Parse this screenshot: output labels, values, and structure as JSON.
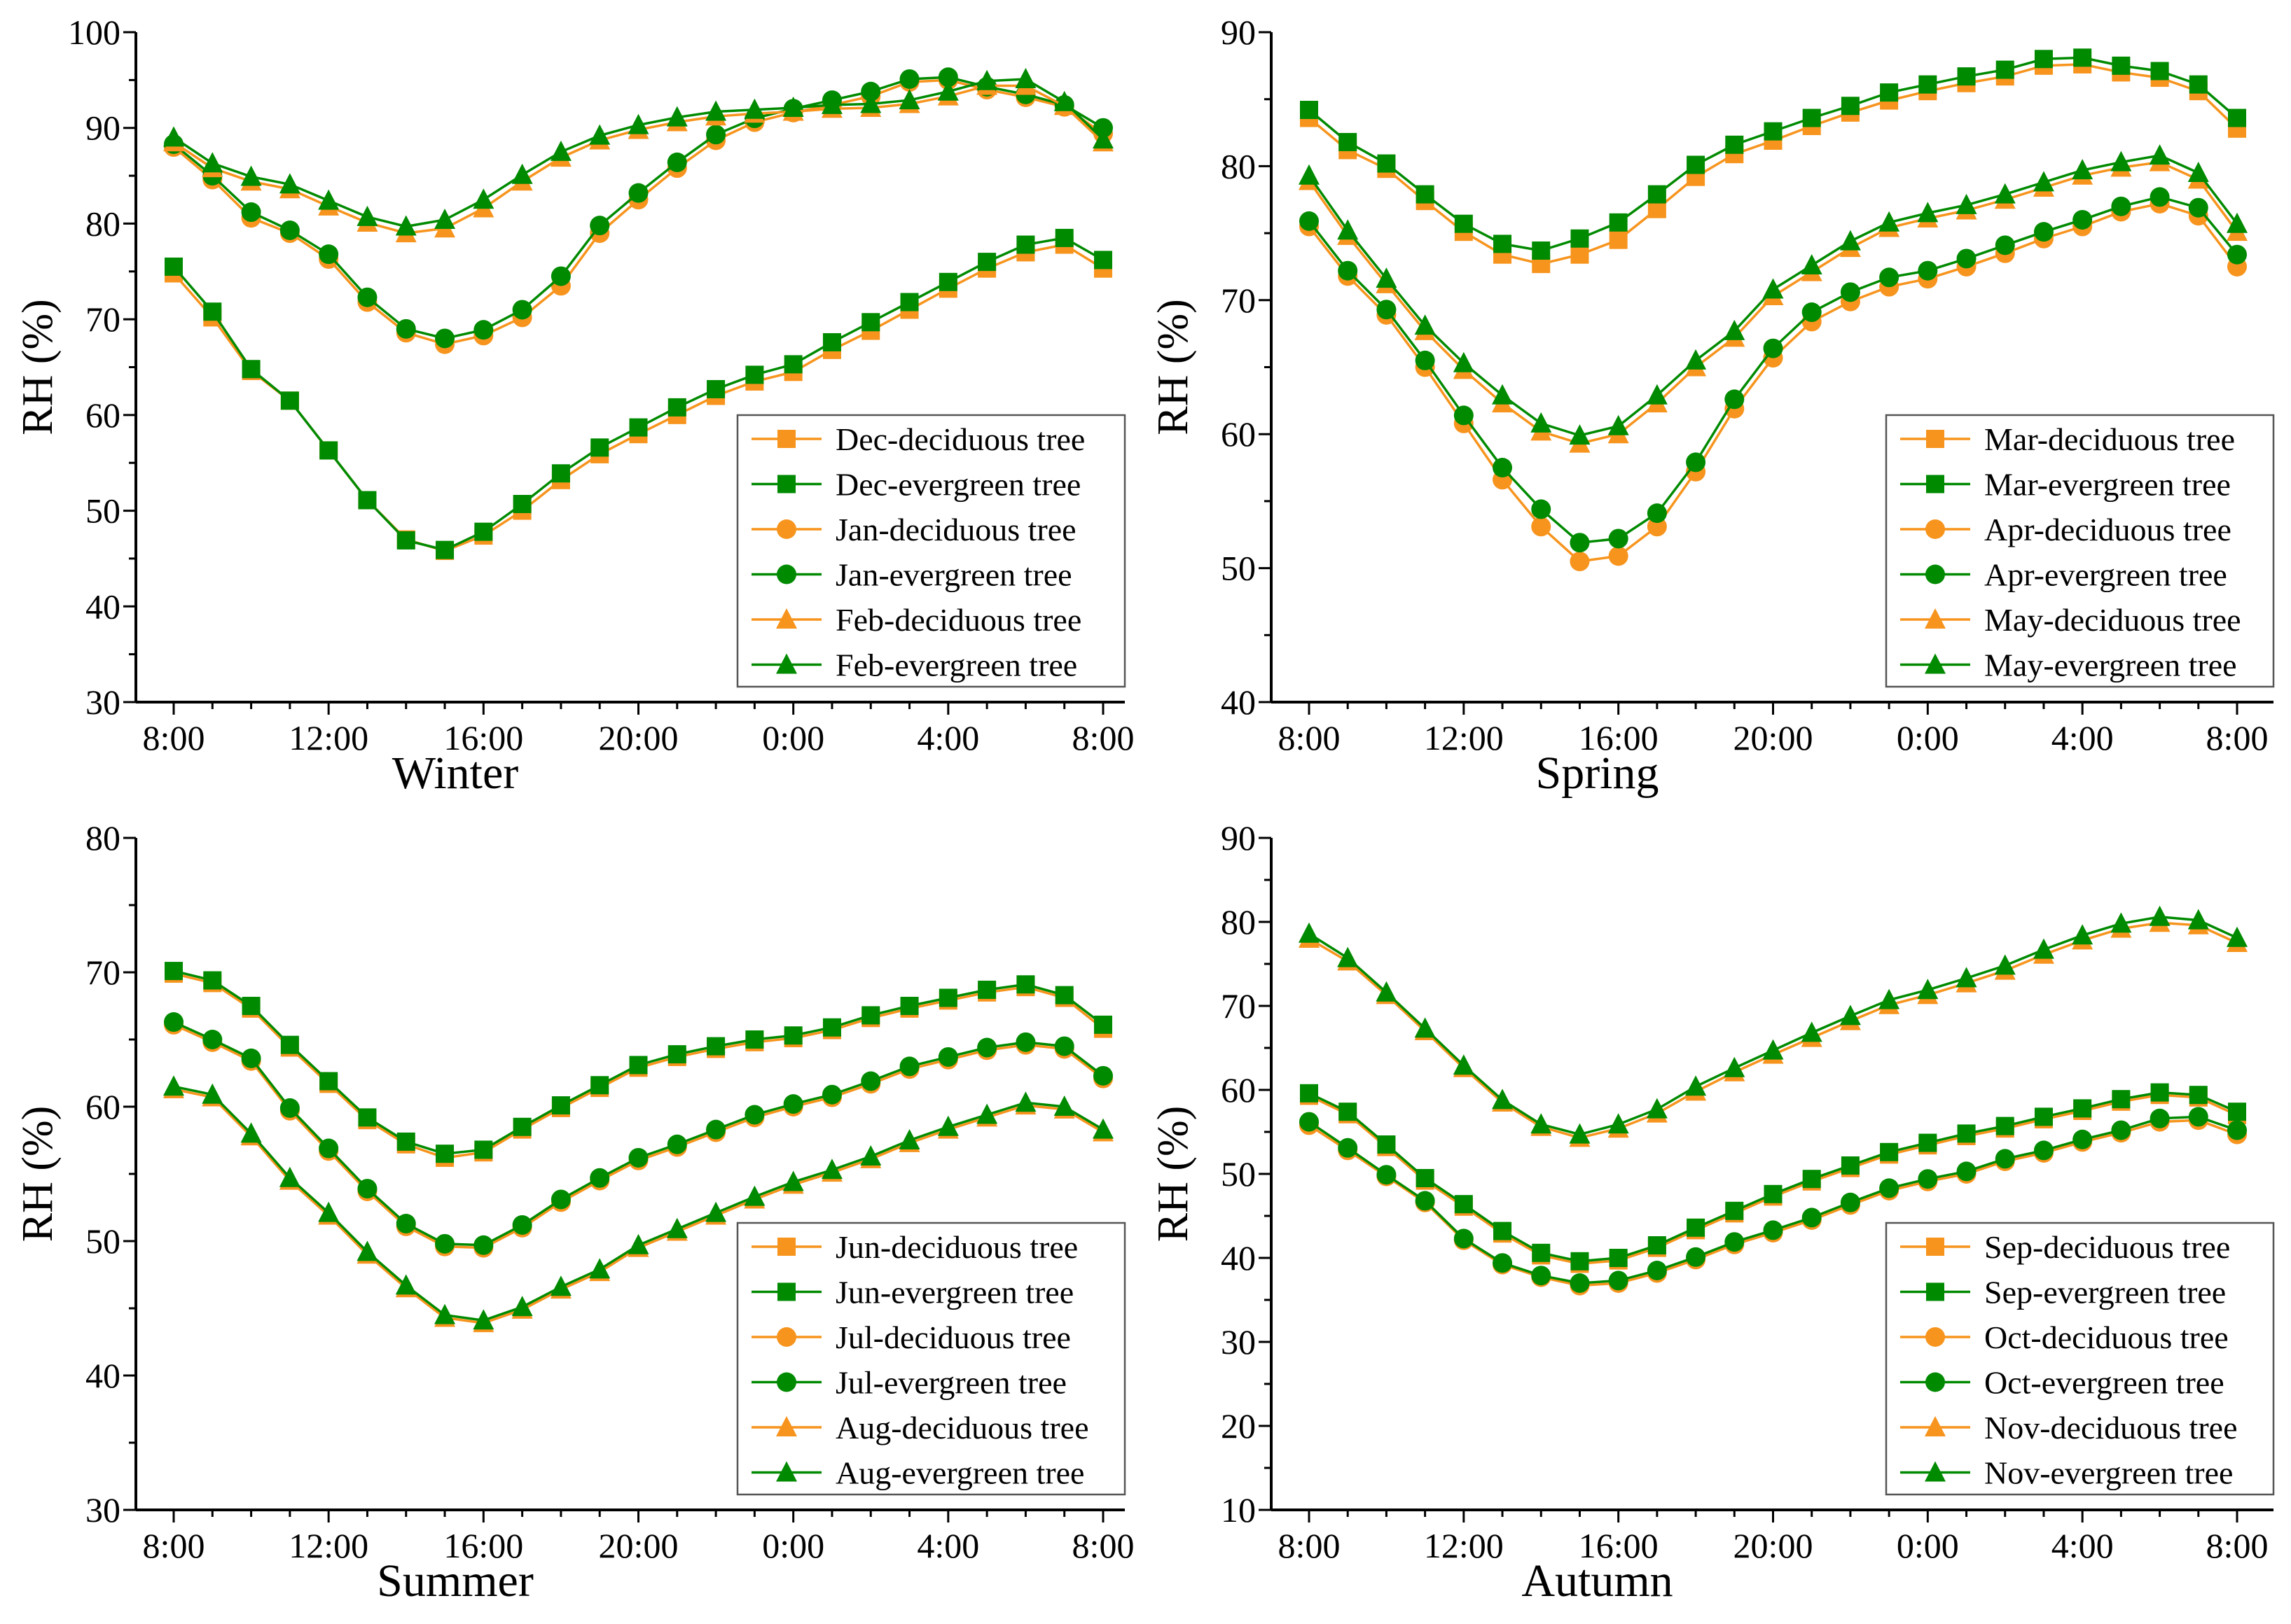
{
  "colors": {
    "deciduous": "#F7941D",
    "evergreen": "#008A00"
  },
  "chart_data": [
    {
      "type": "line",
      "xlabel": "Winter",
      "ylabel": "RH (%)",
      "ylim": [
        30,
        100
      ],
      "ystep": 10,
      "xticks": [
        "8:00",
        "12:00",
        "16:00",
        "20:00",
        "0:00",
        "4:00",
        "8:00"
      ],
      "x_hours": 25,
      "legend": "bottom-right",
      "series": [
        {
          "name": "Dec-deciduous tree",
          "kind": "deciduous",
          "marker": "square",
          "values": [
            74.8,
            70.2,
            64.6,
            61.5,
            56.3,
            51.1,
            47.0,
            45.8,
            47.4,
            50.0,
            53.2,
            55.9,
            58.0,
            60.0,
            62.0,
            63.5,
            64.5,
            66.8,
            68.8,
            71.0,
            73.2,
            75.3,
            77.0,
            77.8,
            75.3
          ]
        },
        {
          "name": "Dec-evergreen tree",
          "kind": "evergreen",
          "marker": "square",
          "values": [
            75.5,
            70.8,
            64.8,
            61.5,
            56.3,
            51.1,
            46.9,
            45.9,
            47.8,
            50.7,
            53.9,
            56.6,
            58.7,
            60.8,
            62.7,
            64.2,
            65.3,
            67.6,
            69.7,
            71.8,
            73.9,
            76.0,
            77.8,
            78.5,
            76.2
          ]
        },
        {
          "name": "Jan-deciduous tree",
          "kind": "deciduous",
          "marker": "circle",
          "values": [
            88.0,
            84.6,
            80.6,
            79.0,
            76.3,
            71.8,
            68.6,
            67.4,
            68.3,
            70.2,
            73.5,
            79.0,
            82.5,
            85.8,
            88.7,
            90.6,
            91.6,
            92.4,
            93.3,
            94.8,
            95.0,
            94.0,
            93.2,
            92.2,
            89.4
          ]
        },
        {
          "name": "Jan-evergreen tree",
          "kind": "evergreen",
          "marker": "circle",
          "values": [
            88.3,
            85.0,
            81.2,
            79.3,
            76.8,
            72.3,
            69.0,
            68.0,
            68.9,
            71.0,
            74.5,
            79.8,
            83.2,
            86.4,
            89.3,
            91.0,
            92.0,
            92.9,
            93.8,
            95.1,
            95.3,
            94.3,
            93.5,
            92.4,
            90.0
          ]
        },
        {
          "name": "Feb-deciduous tree",
          "kind": "deciduous",
          "marker": "triangle",
          "values": [
            88.5,
            85.8,
            84.4,
            83.6,
            81.8,
            80.1,
            79.0,
            79.5,
            81.6,
            84.4,
            86.9,
            88.7,
            89.8,
            90.6,
            91.2,
            91.5,
            91.7,
            92.0,
            92.1,
            92.5,
            93.3,
            94.4,
            94.4,
            92.3,
            88.5
          ]
        },
        {
          "name": "Feb-evergreen tree",
          "kind": "evergreen",
          "marker": "triangle",
          "values": [
            89.0,
            86.3,
            84.9,
            84.1,
            82.4,
            80.7,
            79.7,
            80.4,
            82.5,
            85.1,
            87.5,
            89.2,
            90.3,
            91.1,
            91.7,
            91.9,
            92.1,
            92.4,
            92.5,
            92.9,
            93.8,
            94.9,
            95.1,
            92.7,
            88.8
          ]
        }
      ]
    },
    {
      "type": "line",
      "xlabel": "Spring",
      "ylabel": "RH (%)",
      "ylim": [
        40,
        90
      ],
      "ystep": 10,
      "xticks": [
        "8:00",
        "12:00",
        "16:00",
        "20:00",
        "0:00",
        "4:00",
        "8:00"
      ],
      "x_hours": 25,
      "legend": "bottom-right",
      "series": [
        {
          "name": "Mar-deciduous tree",
          "kind": "deciduous",
          "marker": "square",
          "values": [
            83.6,
            81.2,
            79.8,
            77.4,
            75.1,
            73.4,
            72.7,
            73.4,
            74.5,
            76.8,
            79.2,
            80.9,
            81.9,
            83.0,
            84.0,
            84.9,
            85.6,
            86.2,
            86.7,
            87.5,
            87.6,
            87.0,
            86.6,
            85.6,
            82.8
          ]
        },
        {
          "name": "Mar-evergreen tree",
          "kind": "evergreen",
          "marker": "square",
          "values": [
            84.2,
            81.8,
            80.2,
            77.9,
            75.7,
            74.2,
            73.7,
            74.6,
            75.8,
            77.9,
            80.1,
            81.6,
            82.6,
            83.6,
            84.5,
            85.5,
            86.1,
            86.7,
            87.2,
            88.0,
            88.1,
            87.5,
            87.1,
            86.1,
            83.6
          ]
        },
        {
          "name": "Apr-deciduous tree",
          "kind": "deciduous",
          "marker": "circle",
          "values": [
            75.5,
            71.8,
            68.9,
            65.0,
            60.8,
            56.6,
            53.1,
            50.5,
            50.9,
            53.1,
            57.2,
            61.9,
            65.7,
            68.4,
            69.9,
            71.0,
            71.6,
            72.5,
            73.5,
            74.6,
            75.5,
            76.6,
            77.2,
            76.3,
            72.5
          ]
        },
        {
          "name": "Apr-evergreen tree",
          "kind": "evergreen",
          "marker": "circle",
          "values": [
            75.9,
            72.2,
            69.3,
            65.5,
            61.4,
            57.5,
            54.4,
            51.9,
            52.2,
            54.1,
            57.9,
            62.6,
            66.4,
            69.1,
            70.6,
            71.7,
            72.2,
            73.1,
            74.1,
            75.1,
            76.0,
            77.0,
            77.7,
            76.9,
            73.4
          ]
        },
        {
          "name": "May-deciduous tree",
          "kind": "deciduous",
          "marker": "triangle",
          "values": [
            78.9,
            74.8,
            71.2,
            67.7,
            64.8,
            62.3,
            60.2,
            59.3,
            60.0,
            62.3,
            65.0,
            67.2,
            70.3,
            72.1,
            73.9,
            75.4,
            76.1,
            76.7,
            77.5,
            78.4,
            79.3,
            79.9,
            80.3,
            79.0,
            75.1
          ]
        },
        {
          "name": "May-evergreen tree",
          "kind": "evergreen",
          "marker": "triangle",
          "values": [
            79.3,
            75.2,
            71.6,
            68.1,
            65.3,
            62.9,
            60.8,
            59.9,
            60.6,
            62.9,
            65.5,
            67.7,
            70.8,
            72.6,
            74.4,
            75.8,
            76.5,
            77.1,
            77.9,
            78.8,
            79.7,
            80.3,
            80.8,
            79.5,
            75.7
          ]
        }
      ]
    },
    {
      "type": "line",
      "xlabel": "Summer",
      "ylabel": "RH (%)",
      "ylim": [
        30,
        80
      ],
      "ystep": 10,
      "xticks": [
        "8:00",
        "12:00",
        "16:00",
        "20:00",
        "0:00",
        "4:00",
        "8:00"
      ],
      "x_hours": 25,
      "legend": "bottom-right",
      "series": [
        {
          "name": "Jun-deciduous tree",
          "kind": "deciduous",
          "marker": "square",
          "values": [
            69.9,
            69.2,
            67.3,
            64.4,
            61.7,
            59.0,
            57.2,
            56.2,
            56.6,
            58.3,
            59.9,
            61.4,
            62.9,
            63.7,
            64.3,
            64.8,
            65.1,
            65.7,
            66.6,
            67.3,
            67.9,
            68.5,
            68.9,
            68.1,
            65.8
          ]
        },
        {
          "name": "Jun-evergreen tree",
          "kind": "evergreen",
          "marker": "square",
          "values": [
            70.1,
            69.4,
            67.5,
            64.6,
            61.9,
            59.2,
            57.4,
            56.5,
            56.8,
            58.5,
            60.1,
            61.6,
            63.1,
            63.9,
            64.5,
            65.0,
            65.3,
            65.9,
            66.8,
            67.5,
            68.1,
            68.7,
            69.1,
            68.3,
            66.1
          ]
        },
        {
          "name": "Jul-deciduous tree",
          "kind": "deciduous",
          "marker": "circle",
          "values": [
            66.1,
            64.8,
            63.4,
            59.7,
            56.7,
            53.7,
            51.1,
            49.6,
            49.5,
            51.0,
            52.9,
            54.5,
            56.0,
            57.0,
            58.1,
            59.2,
            60.0,
            60.7,
            61.7,
            62.8,
            63.5,
            64.2,
            64.6,
            64.3,
            62.1
          ]
        },
        {
          "name": "Jul-evergreen tree",
          "kind": "evergreen",
          "marker": "circle",
          "values": [
            66.3,
            65.0,
            63.6,
            59.9,
            56.9,
            53.9,
            51.3,
            49.8,
            49.7,
            51.2,
            53.1,
            54.7,
            56.2,
            57.2,
            58.3,
            59.4,
            60.2,
            60.9,
            61.9,
            63.0,
            63.7,
            64.4,
            64.8,
            64.5,
            62.3
          ]
        },
        {
          "name": "Aug-deciduous tree",
          "kind": "deciduous",
          "marker": "triangle",
          "values": [
            61.3,
            60.7,
            57.8,
            54.5,
            51.9,
            49.0,
            46.5,
            44.3,
            43.9,
            44.9,
            46.4,
            47.7,
            49.5,
            50.7,
            51.9,
            53.1,
            54.2,
            55.1,
            56.1,
            57.3,
            58.3,
            59.2,
            60.1,
            59.8,
            58.1
          ]
        },
        {
          "name": "Aug-evergreen tree",
          "kind": "evergreen",
          "marker": "triangle",
          "values": [
            61.5,
            60.9,
            58.0,
            54.7,
            52.1,
            49.2,
            46.7,
            44.5,
            44.1,
            45.1,
            46.6,
            47.9,
            49.7,
            50.9,
            52.1,
            53.3,
            54.4,
            55.3,
            56.3,
            57.5,
            58.5,
            59.4,
            60.3,
            60.0,
            58.3
          ]
        }
      ]
    },
    {
      "type": "line",
      "xlabel": "Autumn",
      "ylabel": "RH (%)",
      "ylim": [
        10,
        90
      ],
      "ystep": 10,
      "xticks": [
        "8:00",
        "12:00",
        "16:00",
        "20:00",
        "0:00",
        "4:00",
        "8:00"
      ],
      "x_hours": 25,
      "legend": "bottom-right",
      "series": [
        {
          "name": "Sep-deciduous tree",
          "kind": "deciduous",
          "marker": "square",
          "values": [
            59.3,
            57.1,
            53.2,
            49.2,
            46.1,
            42.9,
            40.3,
            39.3,
            39.7,
            41.2,
            43.3,
            45.3,
            47.3,
            49.1,
            50.7,
            52.3,
            53.4,
            54.5,
            55.4,
            56.5,
            57.5,
            58.6,
            59.4,
            59.1,
            57.0
          ]
        },
        {
          "name": "Sep-evergreen tree",
          "kind": "evergreen",
          "marker": "square",
          "values": [
            59.6,
            57.4,
            53.5,
            49.5,
            46.4,
            43.2,
            40.6,
            39.6,
            40.0,
            41.5,
            43.6,
            45.6,
            47.6,
            49.4,
            51.0,
            52.6,
            53.7,
            54.8,
            55.7,
            56.8,
            57.8,
            58.9,
            59.7,
            59.4,
            57.4
          ]
        },
        {
          "name": "Oct-deciduous tree",
          "kind": "deciduous",
          "marker": "circle",
          "values": [
            55.8,
            52.8,
            49.7,
            46.6,
            42.1,
            39.2,
            37.7,
            36.7,
            37.0,
            38.2,
            39.8,
            41.6,
            43.0,
            44.5,
            46.3,
            48.0,
            49.1,
            50.0,
            51.5,
            52.5,
            53.8,
            54.9,
            56.2,
            56.4,
            54.7
          ]
        },
        {
          "name": "Oct-evergreen tree",
          "kind": "evergreen",
          "marker": "circle",
          "values": [
            56.2,
            53.1,
            49.9,
            46.8,
            42.3,
            39.4,
            37.9,
            37.0,
            37.3,
            38.5,
            40.1,
            41.9,
            43.3,
            44.8,
            46.6,
            48.3,
            49.4,
            50.3,
            51.8,
            52.8,
            54.1,
            55.2,
            56.6,
            56.8,
            55.2
          ]
        },
        {
          "name": "Nov-deciduous tree",
          "kind": "deciduous",
          "marker": "triangle",
          "values": [
            78.0,
            75.3,
            71.3,
            67.0,
            62.6,
            58.5,
            55.6,
            54.3,
            55.4,
            57.2,
            59.8,
            62.1,
            64.2,
            66.2,
            68.2,
            70.1,
            71.3,
            72.7,
            74.2,
            76.1,
            77.8,
            79.2,
            79.9,
            79.6,
            77.5
          ]
        },
        {
          "name": "Nov-evergreen tree",
          "kind": "evergreen",
          "marker": "triangle",
          "values": [
            78.6,
            75.7,
            71.6,
            67.3,
            62.9,
            58.8,
            55.9,
            54.7,
            55.9,
            57.7,
            60.4,
            62.6,
            64.7,
            66.8,
            68.8,
            70.7,
            71.9,
            73.3,
            74.8,
            76.7,
            78.4,
            79.8,
            80.6,
            80.2,
            78.1
          ]
        }
      ]
    }
  ]
}
